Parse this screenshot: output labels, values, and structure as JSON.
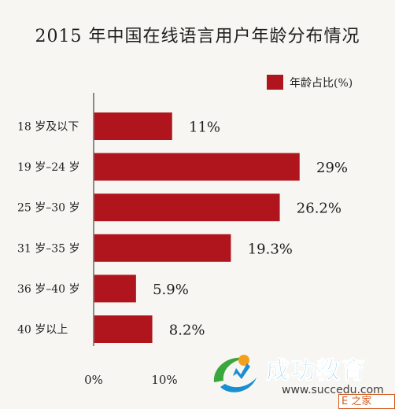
{
  "chart_data": {
    "type": "bar",
    "orientation": "horizontal",
    "title": "2015 年中国在线语言用户年龄分布情况",
    "categories": [
      "18 岁及以下",
      "19 岁–24 岁",
      "25 岁–30 岁",
      "31 岁–35 岁",
      "36 岁–40 岁",
      "40 岁以上"
    ],
    "series": [
      {
        "name": "年龄占比(%)",
        "values": [
          11,
          29,
          26.2,
          19.3,
          5.9,
          8.2
        ],
        "labels": [
          "11%",
          "29%",
          "26.2%",
          "19.3%",
          "5.9%",
          "8.2%"
        ],
        "color": "#b0141c"
      }
    ],
    "x_ticks": [
      "0%",
      "10%"
    ],
    "xlim": [
      0,
      30
    ],
    "grid": false,
    "legend_position": "top-right"
  },
  "watermark": {
    "name": "成功教育",
    "url": "www.succedu.com",
    "badge": "E 之家"
  }
}
